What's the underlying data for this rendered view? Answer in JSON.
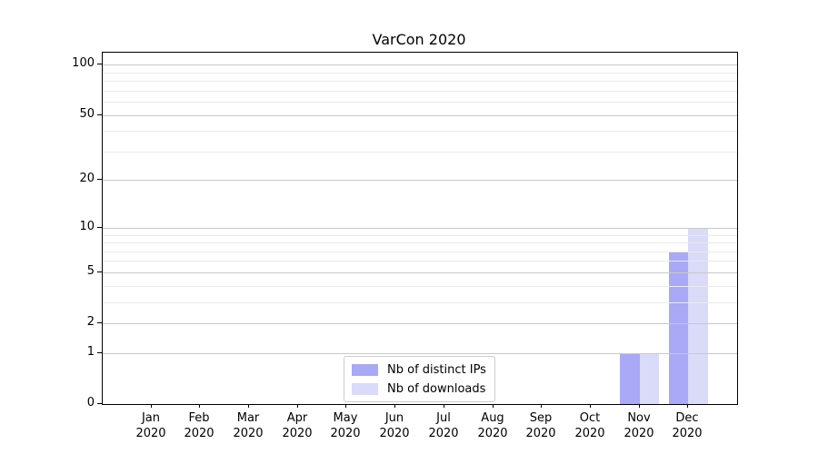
{
  "chart_data": {
    "type": "bar",
    "title": "VarCon 2020",
    "categories": [
      "Jan 2020",
      "Feb 2020",
      "Mar 2020",
      "Apr 2020",
      "May 2020",
      "Jun 2020",
      "Jul 2020",
      "Aug 2020",
      "Sep 2020",
      "Oct 2020",
      "Nov 2020",
      "Dec 2020"
    ],
    "series": [
      {
        "name": "Nb of distinct IPs",
        "color": "#a9a9f7",
        "values": [
          0,
          0,
          0,
          0,
          0,
          0,
          0,
          0,
          0,
          0,
          1,
          7
        ]
      },
      {
        "name": "Nb of downloads",
        "color": "#dadaf9",
        "values": [
          0,
          0,
          0,
          0,
          0,
          0,
          0,
          0,
          0,
          0,
          1,
          10
        ]
      }
    ],
    "y_axis": {
      "scale": "log1p",
      "ticks": [
        0,
        1,
        2,
        5,
        10,
        20,
        50,
        100
      ],
      "minor_gridlines": [
        3,
        4,
        6,
        7,
        8,
        9,
        30,
        40,
        60,
        70,
        80,
        90
      ],
      "max": 118
    },
    "xlabel": "",
    "ylabel": "",
    "legend": {
      "position": "lower center",
      "entries": [
        "Nb of distinct IPs",
        "Nb of downloads"
      ]
    },
    "grid": "horizontal"
  }
}
